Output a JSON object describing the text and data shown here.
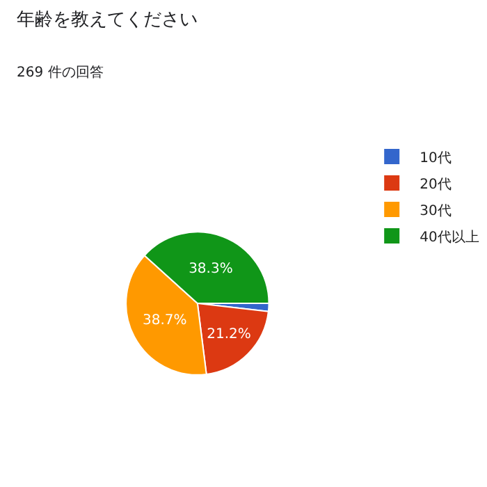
{
  "chart_data": {
    "type": "pie",
    "title": "年齢を教えてください",
    "subtitle": "269 件の回答",
    "categories": [
      "10代",
      "20代",
      "30代",
      "40代以上"
    ],
    "values": [
      1.8,
      21.2,
      38.7,
      38.3
    ],
    "colors": [
      "#3366cc",
      "#dc3912",
      "#ff9900",
      "#109618"
    ],
    "value_labels": [
      null,
      "21.2%",
      "38.7%",
      "38.3%"
    ],
    "legend": "right"
  }
}
